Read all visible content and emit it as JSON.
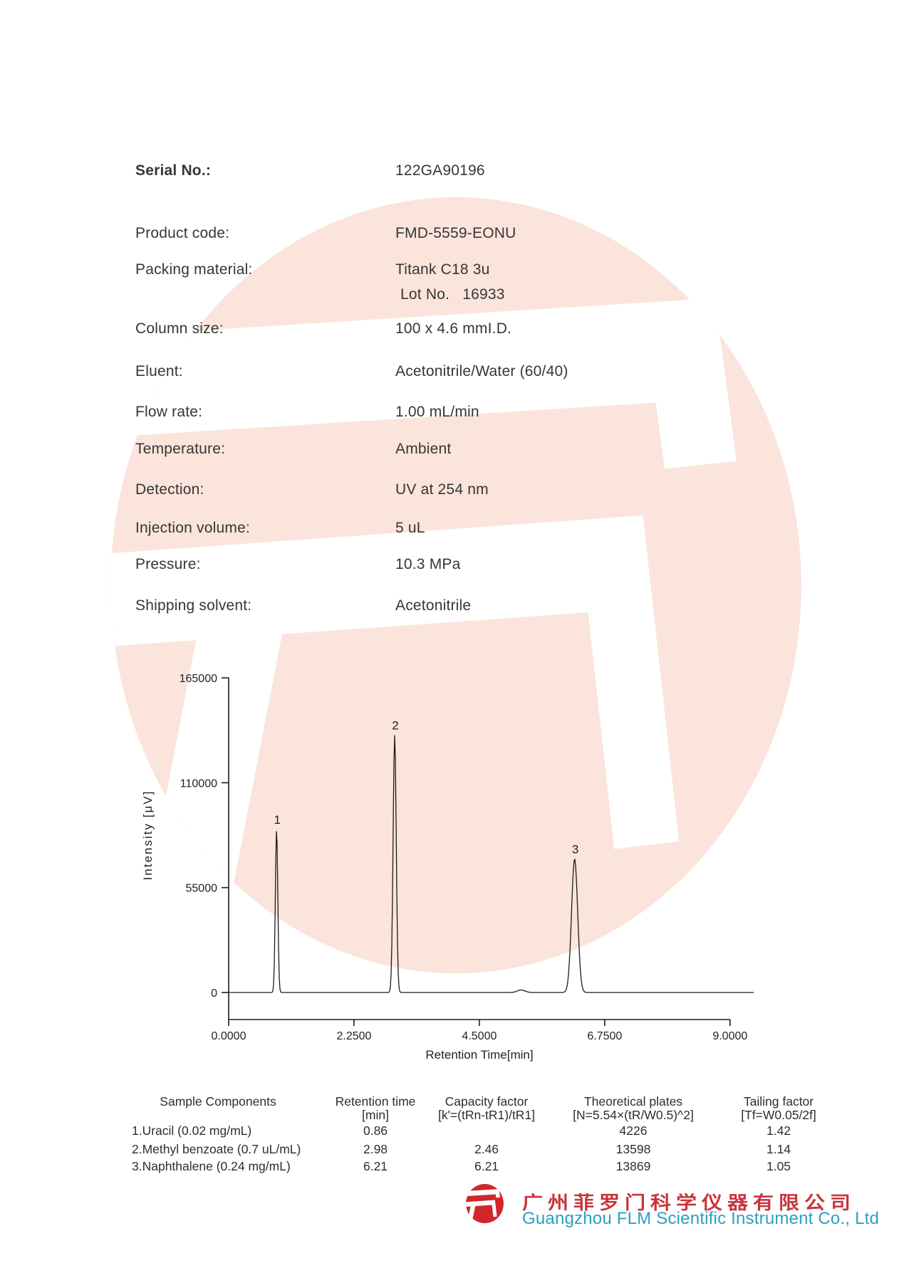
{
  "colors": {
    "watermark_pink": "#fae4db",
    "body_text": "#363636",
    "chart_line": "#1c1c1c",
    "logo_red": "#d2262b",
    "company_cn_red": "#c8333b",
    "company_en_teal": "#2d9fc0"
  },
  "report": {
    "serial": {
      "label": "Serial No.:",
      "value": "122GA90196"
    },
    "fields": [
      {
        "label": "Product code:",
        "value": "FMD-5559-EONU"
      },
      {
        "label": "Packing material:",
        "value": "Titank C18 3u",
        "value2": "Lot No.   16933"
      },
      {
        "label": "Column size:",
        "value": "100 x 4.6 mmI.D."
      },
      {
        "label": "Eluent:",
        "value": "Acetonitrile/Water (60/40)"
      },
      {
        "label": "Flow rate:",
        "value": "1.00 mL/min"
      },
      {
        "label": "Temperature:",
        "value": "Ambient"
      },
      {
        "label": "Detection:",
        "value": "UV at 254 nm"
      },
      {
        "label": "Injection volume:",
        "value": "5 uL"
      },
      {
        "label": "Pressure:",
        "value": "10.3 MPa"
      },
      {
        "label": "Shipping solvent:",
        "value": "Acetonitrile"
      }
    ]
  },
  "chart_data": {
    "type": "line",
    "title": "",
    "xlabel": "Retention Time[min]",
    "ylabel": "Intensity [μV]",
    "xlim": [
      0,
      9
    ],
    "ylim": [
      0,
      165000
    ],
    "x_ticks": [
      "0.0000",
      "2.2500",
      "4.5000",
      "6.7500",
      "9.0000"
    ],
    "y_ticks": [
      "165000",
      "110000",
      "55000",
      "0"
    ],
    "grid": false,
    "legend": "none",
    "series_note": "single chromatogram trace, flat baseline at 0 with three sharp peaks",
    "peaks": [
      {
        "label": "1",
        "rt_min": 0.86,
        "height_uV": 85500,
        "sigma_min": 0.022
      },
      {
        "label": "2",
        "rt_min": 2.98,
        "height_uV": 135000,
        "sigma_min": 0.028
      },
      {
        "label": "3",
        "rt_min": 6.21,
        "height_uV": 70000,
        "sigma_min": 0.055
      }
    ],
    "baseline_artifact": {
      "rt_min": 5.25,
      "height_uV": 1300,
      "sigma_min": 0.07
    }
  },
  "table": {
    "columns": [
      {
        "line1": "Sample Components",
        "line2": ""
      },
      {
        "line1": "Retention time",
        "line2": "[min]"
      },
      {
        "line1": "Capacity factor",
        "line2": "[k'=(tRn-tR1)/tR1]"
      },
      {
        "line1": "Theoretical plates",
        "line2": "[N=5.54×(tR/W0.5)^2]"
      },
      {
        "line1": "Tailing factor",
        "line2": "[Tf=W0.05/2f]"
      }
    ],
    "rows": [
      {
        "component": "1.Uracil (0.02 mg/mL)",
        "retention_time": "0.86",
        "capacity_factor": "",
        "theoretical_plates": "4226",
        "tailing_factor": "1.42"
      },
      {
        "component": "2.Methyl benzoate (0.7 uL/mL)",
        "retention_time": "2.98",
        "capacity_factor": "2.46",
        "theoretical_plates": "13598",
        "tailing_factor": "1.14"
      },
      {
        "component": "3.Naphthalene (0.24 mg/mL)",
        "retention_time": "6.21",
        "capacity_factor": "6.21",
        "theoretical_plates": "13869",
        "tailing_factor": "1.05"
      }
    ]
  },
  "footer": {
    "company_cn": "广州菲罗门科学仪器有限公司",
    "company_en": "Guangzhou FLM Scientific Instrument Co., Ltd"
  }
}
